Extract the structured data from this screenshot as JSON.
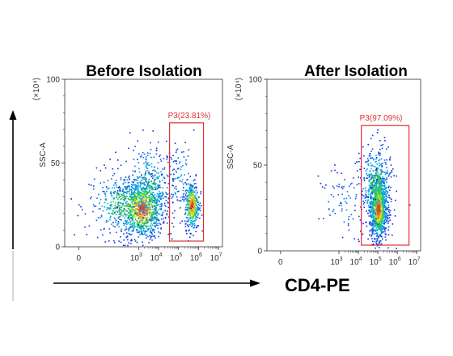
{
  "figure": {
    "x_axis_label": "CD4-PE",
    "gate_color": "#e03030",
    "axis_color": "#333333",
    "arrow_color": "#000000"
  },
  "chart_data": [
    {
      "type": "scatter",
      "title": "Before Isolation",
      "xlabel": "",
      "ylabel": "SSC-A",
      "y_multiplier": "(x10^4)",
      "y_multiplier_text": "(×10⁴)",
      "x_scale": "log",
      "x_range": [
        -0.7,
        7.2
      ],
      "ylim": [
        0,
        100
      ],
      "x_ticks": [
        {
          "value": 0,
          "base": "0",
          "exp": ""
        },
        {
          "value": 3,
          "base": "10",
          "exp": "3"
        },
        {
          "value": 4,
          "base": "10",
          "exp": "4"
        },
        {
          "value": 5,
          "base": "10",
          "exp": "5"
        },
        {
          "value": 6,
          "base": "10",
          "exp": "6"
        },
        {
          "value": 7,
          "base": "10",
          "exp": "7"
        }
      ],
      "y_ticks": [
        {
          "value": 0,
          "label": "0"
        },
        {
          "value": 50,
          "label": "50"
        },
        {
          "value": 100,
          "label": "100"
        }
      ],
      "gate": {
        "name": "P3",
        "percent": "23.81%",
        "label": "P3(23.81%)",
        "x_range": [
          4.55,
          6.25
        ],
        "y_range": [
          0,
          74
        ]
      },
      "populations": [
        {
          "center_x": 3.15,
          "center_y": 23,
          "sd_x": 0.55,
          "sd_y": 9,
          "count": 900,
          "weight": 1.0
        },
        {
          "center_x": 2.3,
          "center_y": 25,
          "sd_x": 0.9,
          "sd_y": 10,
          "count": 420,
          "weight": 0.6
        },
        {
          "center_x": 3.5,
          "center_y": 36,
          "sd_x": 0.65,
          "sd_y": 13,
          "count": 300,
          "weight": 0.5
        },
        {
          "center_x": 5.65,
          "center_y": 25,
          "sd_x": 0.18,
          "sd_y": 7,
          "count": 380,
          "weight": 1.0
        },
        {
          "center_x": 5.1,
          "center_y": 40,
          "sd_x": 0.4,
          "sd_y": 11,
          "count": 90,
          "weight": 0.3
        }
      ]
    },
    {
      "type": "scatter",
      "title": "After Isolation",
      "xlabel": "",
      "ylabel": "SSC-A",
      "y_multiplier": "(x10^4)",
      "y_multiplier_text": "(×10⁴)",
      "x_scale": "log",
      "x_range": [
        -0.7,
        7.2
      ],
      "ylim": [
        0,
        100
      ],
      "x_ticks": [
        {
          "value": 0,
          "base": "0",
          "exp": ""
        },
        {
          "value": 3,
          "base": "10",
          "exp": "3"
        },
        {
          "value": 4,
          "base": "10",
          "exp": "4"
        },
        {
          "value": 5,
          "base": "10",
          "exp": "5"
        },
        {
          "value": 6,
          "base": "10",
          "exp": "6"
        },
        {
          "value": 7,
          "base": "10",
          "exp": "7"
        }
      ],
      "y_ticks": [
        {
          "value": 0,
          "label": "0"
        },
        {
          "value": 50,
          "label": "50"
        },
        {
          "value": 100,
          "label": "100"
        }
      ],
      "gate": {
        "name": "P3",
        "percent": "97.09%",
        "label": "P3(97.09%)",
        "x_range": [
          4.15,
          6.6
        ],
        "y_range": [
          0,
          73
        ]
      },
      "populations": [
        {
          "center_x": 5.0,
          "center_y": 25,
          "sd_x": 0.22,
          "sd_y": 9,
          "count": 1100,
          "weight": 1.0
        },
        {
          "center_x": 4.9,
          "center_y": 38,
          "sd_x": 0.4,
          "sd_y": 12,
          "count": 380,
          "weight": 0.6
        },
        {
          "center_x": 3.4,
          "center_y": 30,
          "sd_x": 0.7,
          "sd_y": 10,
          "count": 90,
          "weight": 0.2
        }
      ]
    }
  ]
}
